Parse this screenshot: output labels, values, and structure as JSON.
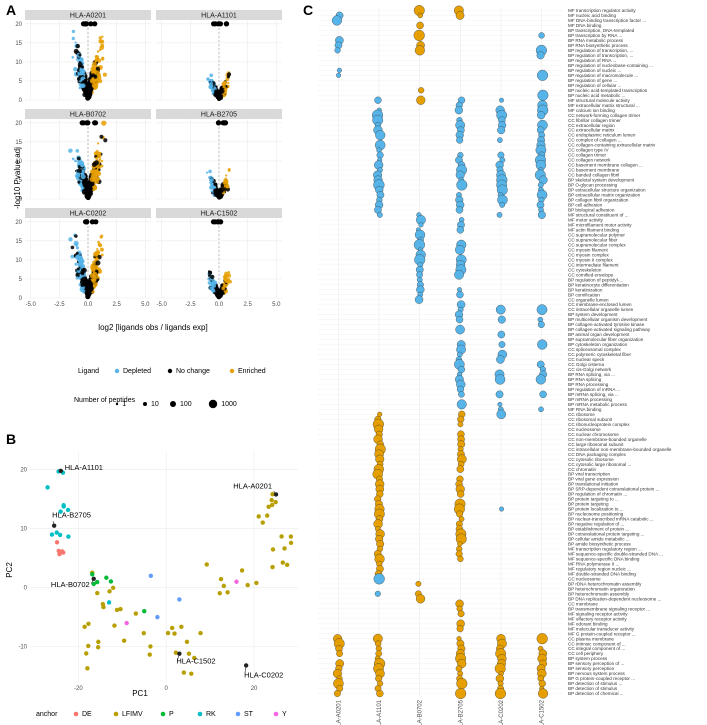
{
  "panel_labels": [
    "A",
    "B",
    "C"
  ],
  "colors": {
    "depleted": "#56b4e9",
    "no_change": "#000000",
    "enriched": "#e69f00",
    "strip_bg": "#d9d9d9",
    "grid": "#ebebeb",
    "anchor_DE": "#f8766d",
    "anchor_LFIMV": "#b79f00",
    "anchor_P": "#00ba38",
    "anchor_RK": "#00bfc4",
    "anchor_ST": "#619cff",
    "anchor_Y": "#f564e3"
  },
  "chart_data": [
    {
      "type": "scatter",
      "panel": "A",
      "facets": [
        "HLA-A0201",
        "HLA-A1101",
        "HLA-B0702",
        "HLA-B2705",
        "HLA-C0202",
        "HLA-C1502"
      ],
      "x_ticks": [
        "-5.0",
        "-2.5",
        "0.0",
        "2.5",
        "5.0"
      ],
      "y_ticks": [
        "0",
        "5",
        "10",
        "15",
        "20"
      ],
      "xlim": [
        -5.5,
        5.5
      ],
      "ylim": [
        0,
        21
      ],
      "ylabel": "-log10 Pvalue adj",
      "xlabel": "log2 [ligands obs / ligands exp]",
      "legend": {
        "ligand_title": "Ligand",
        "ligand_items": [
          "Depleted",
          "No change",
          "Enriched"
        ],
        "size_title": "Number of peptides",
        "size_items": [
          "1",
          "10",
          "100",
          "1000"
        ]
      }
    },
    {
      "type": "scatter",
      "panel": "B",
      "xlabel": "PC1",
      "ylabel": "PC2",
      "x_ticks": [
        "-20",
        "0",
        "20"
      ],
      "y_ticks": [
        "-10",
        "0",
        "10",
        "20"
      ],
      "xlim": [
        -31,
        30
      ],
      "ylim": [
        -16,
        23
      ],
      "callouts": [
        {
          "label": "HLA-A1101",
          "x": -24,
          "y": 19.8
        },
        {
          "label": "HLA-A0201",
          "x": 25,
          "y": 15.8
        },
        {
          "label": "HLA-B2705",
          "x": -25.5,
          "y": 10.5
        },
        {
          "label": "HLA-B0702",
          "x": -16.5,
          "y": 1.5
        },
        {
          "label": "HLA-C1502",
          "x": 3,
          "y": -11.2
        },
        {
          "label": "HLA-C0202",
          "x": 18.2,
          "y": -13.2
        }
      ],
      "legend_title": "anchor",
      "anchors": [
        "DE",
        "LFIMV",
        "P",
        "RK",
        "ST",
        "Y"
      ]
    },
    {
      "type": "scatter",
      "panel": "C",
      "subtype": "dotplot",
      "x_categories": [
        "HLA-A0201",
        "HLA-A1101",
        "HLA-B0702",
        "HLA-B2705",
        "HLA-C0202",
        "HLA-C1502"
      ],
      "terms": [
        "MF transcription regulator activity",
        "MF nucleic acid binding",
        "MF DNA-binding transcription factor ...",
        "MF DNA binding",
        "BP transcription, DNA-templated",
        "BP transcription by RNA ...",
        "BP RNA metabolic process",
        "BP RNA biosynthetic process",
        "BP regulation of transcription, ...",
        "BP regulation of transcription, ...",
        "BP regulation of RNA ...",
        "BP regulation of nucleobase-containing ...",
        "BP regulation of nucleic ...",
        "BP regulation of macromolecule ...",
        "BP regulation of gene ...",
        "BP regulation of cellular ...",
        "BP nucleic acid-templated transcription",
        "BP nucleic acid metabolic ...",
        "MF structural molecule activity",
        "MF extracellular matrix structural ...",
        "MF calcium ion binding",
        "CC network-forming collagen trimer",
        "CC fibrillar collagen trimer",
        "CC extracellular region",
        "CC extracellular matrix",
        "CC endoplasmic reticulum lumen",
        "CC complex of collagen ...",
        "CC collagen-containing extracellular matrix",
        "CC collagen type IV",
        "CC collagen trimer",
        "CC collagen network",
        "CC basement membrane collagen ...",
        "CC basement membrane",
        "CC banded collagen fibril",
        "BP skeletal system development",
        "BP O-glycan processing",
        "BP extracellular structure organization",
        "BP extracellular matrix organization",
        "BP collagen fibril organization",
        "BP cell adhesion",
        "BP biological adhesion",
        "MF structural constituent of ...",
        "MF motor activity",
        "MF microfilament motor activity",
        "MF actin filament binding",
        "CC supramolecular polymer",
        "CC supramolecular fiber",
        "CC supramolecular complex",
        "CC myosin filament",
        "CC myosin complex",
        "CC myosin II complex",
        "CC intermediate filament",
        "CC cytoskeleton",
        "CC cornified envelope",
        "BP regulation of peptidyl-...",
        "BP keratinocyte differentiation",
        "BP keratinization",
        "BP cornification",
        "CC organelle lumen",
        "CC membrane-enclosed lumen",
        "CC intracellular organelle lumen",
        "BP system development",
        "BP multicellular organism development",
        "BP collagen-activated tyrosine kinase",
        "BP collagen-activated signaling pathway",
        "BP animal organ development",
        "BP supramolecular fiber organization",
        "BP cytoskeleton organization",
        "CC spliceosomal complex",
        "CC polymeric cytoskeletal fiber",
        "CC nuclear speck",
        "CC Golgi cisterna",
        "CC cis-Golgi network",
        "BP RNA splicing, via ...",
        "BP RNA splicing",
        "BP RNA processing",
        "BP regulation of mRNA ...",
        "BP mRNA splicing, via ...",
        "BP mRNA processing",
        "BP mRNA metabolic process",
        "MF RNA binding",
        "CC ribosome",
        "CC ribosomal subunit",
        "CC ribonucleoprotein complex",
        "CC nucleosome",
        "CC nuclear chromosome",
        "CC non-membrane-bounded organelle",
        "CC large ribosomal subunit",
        "CC intracellular non-membrane-bounded organelle",
        "CC DNA packaging complex",
        "CC cytosolic ribosome",
        "CC cytosolic large ribosomal ...",
        "CC chromatin",
        "BP viral transcription",
        "BP viral gene expression",
        "BP translational initiation",
        "BP SRP-dependent cotranslational protein ...",
        "BP regulation of chromatin ...",
        "BP protein targeting to ...",
        "BP protein targeting",
        "BP protein localization to ...",
        "BP nucleosome positioning",
        "BP nuclear-transcribed mRNA catabolic ...",
        "BP negative regulation of ...",
        "BP establishment of protein ...",
        "BP cotranslational protein targeting ...",
        "BP cellular amide metabolic ...",
        "BP amide biosynthetic process",
        "MF transcription regulatory region ...",
        "MF sequence-specific double-stranded DNA ...",
        "MF sequence-specific DNA binding",
        "MF RNA polymerase II ...",
        "MF regulatory region nucleic ...",
        "MF double-stranded DNA binding",
        "CC nucleosome",
        "BP rDNA heterochromatin assembly",
        "BP heterochromatin organization",
        "BP heterochromatin assembly",
        "BP DNA replication-dependent nucleosome ...",
        "CC membrane",
        "BP transmembrane signaling receptor ...",
        "MF signaling receptor activity",
        "MF olfactory receptor activity",
        "MF odorant binding",
        "MF molecular transducer activity",
        "MF G protein-coupled receptor ...",
        "CC plasma membrane",
        "CC intrinsic component of ...",
        "CC integral component of ...",
        "CC cell periphery",
        "BP system process",
        "BP sensory perception of ...",
        "BP sensory perception",
        "BP nervous system process",
        "BP G protein-coupled receptor ...",
        "BP detection of stimulus ...",
        "BP detection of stimulus",
        "BP detection of chemical ..."
      ],
      "block_colors": {
        "HLA-A0201": [
          "depleted",
          "enriched"
        ],
        "HLA-A1101": [
          "depleted",
          "enriched"
        ],
        "HLA-B0702": [
          "enriched",
          "depleted",
          "enriched"
        ],
        "HLA-B2705": [
          "enriched",
          "depleted",
          "enriched"
        ],
        "HLA-C0202": [
          "depleted",
          "enriched"
        ],
        "HLA-C1502": [
          "depleted",
          "enriched"
        ]
      }
    }
  ]
}
